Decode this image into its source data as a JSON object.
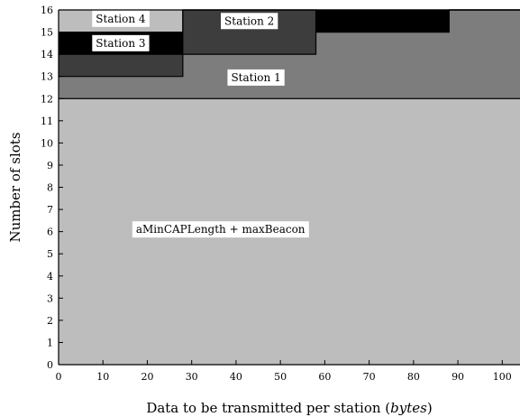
{
  "chart_data": {
    "type": "area",
    "xlabel": "Data to be transmitted per station (",
    "xlabel_unit": "bytes",
    "xlabel_close": ")",
    "ylabel": "Number of slots",
    "xlim": [
      0,
      104
    ],
    "ylim": [
      0,
      16
    ],
    "xticks": [
      0,
      10,
      20,
      30,
      40,
      50,
      60,
      70,
      80,
      90,
      100
    ],
    "yticks": [
      0,
      1,
      2,
      3,
      4,
      5,
      6,
      7,
      8,
      9,
      10,
      11,
      12,
      13,
      14,
      15,
      16
    ],
    "colors": {
      "base": "#bdbdbd",
      "station1": "#7d7d7d",
      "station2": "#3d3d3d",
      "station3": "#000000",
      "station4": "#bdbdbd",
      "outline": "#000000",
      "label_bg": "#ffffff"
    },
    "base_region": {
      "label": "aMinCAPLength + maxBeacon",
      "value": 12,
      "label_at": [
        36.5,
        6.1
      ]
    },
    "stations": [
      {
        "label": "Station 1",
        "label_at": [
          44.5,
          12.95
        ],
        "boundary": [
          [
            0,
            13
          ],
          [
            28,
            13
          ],
          [
            28,
            14
          ],
          [
            58,
            14
          ],
          [
            58,
            15
          ],
          [
            88,
            15
          ],
          [
            88,
            16
          ],
          [
            104,
            16
          ]
        ]
      },
      {
        "label": "Station 2",
        "label_at": [
          43,
          15.5
        ],
        "boundary": [
          [
            0,
            14
          ],
          [
            28,
            14
          ],
          [
            28,
            16
          ],
          [
            58,
            16
          ],
          [
            58,
            15
          ],
          [
            88,
            15
          ],
          [
            88,
            16
          ],
          [
            104,
            16
          ]
        ]
      },
      {
        "label": "Station 3",
        "label_at": [
          14,
          14.5
        ],
        "boundary": [
          [
            0,
            15
          ],
          [
            28,
            15
          ],
          [
            28,
            16
          ],
          [
            104,
            16
          ]
        ]
      },
      {
        "label": "Station 4",
        "label_at": [
          14,
          15.6
        ],
        "boundary": [
          [
            0,
            16
          ],
          [
            28,
            16
          ],
          [
            104,
            16
          ]
        ]
      }
    ]
  }
}
